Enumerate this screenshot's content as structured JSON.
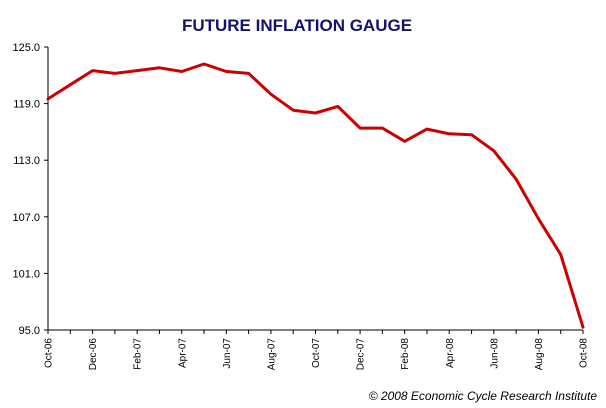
{
  "chart_data": {
    "type": "line",
    "title": "FUTURE INFLATION GAUGE",
    "xlabel": "",
    "ylabel": "",
    "ylim": [
      95.0,
      125.0
    ],
    "yticks": [
      "125.0",
      "119.0",
      "113.0",
      "107.0",
      "101.0",
      "95.0"
    ],
    "ytick_values": [
      125,
      119,
      113,
      107,
      101,
      95
    ],
    "xtick_labels": [
      "Oct-06",
      "Dec-06",
      "Feb-07",
      "Apr-07",
      "Jun-07",
      "Aug-07",
      "Oct-07",
      "Dec-07",
      "Feb-08",
      "Apr-08",
      "Jun-08",
      "Aug-08",
      "Oct-08"
    ],
    "grid": false,
    "legend": "none",
    "x": [
      "Oct-06",
      "Nov-06",
      "Dec-06",
      "Jan-07",
      "Feb-07",
      "Mar-07",
      "Apr-07",
      "May-07",
      "Jun-07",
      "Jul-07",
      "Aug-07",
      "Sep-07",
      "Oct-07",
      "Nov-07",
      "Dec-07",
      "Jan-08",
      "Feb-08",
      "Mar-08",
      "Apr-08",
      "May-08",
      "Jun-08",
      "Jul-08",
      "Aug-08",
      "Sep-08",
      "Oct-08"
    ],
    "series": [
      {
        "values": [
          119.5,
          121.0,
          122.5,
          122.2,
          122.5,
          122.8,
          122.4,
          123.2,
          122.4,
          122.2,
          120.0,
          118.3,
          118.0,
          118.7,
          116.4,
          116.4,
          115.0,
          116.3,
          115.8,
          115.7,
          114.0,
          111.0,
          106.8,
          103.0,
          95.3
        ]
      }
    ],
    "line_color": "#cc0000"
  },
  "footer": {
    "credit": "© 2008 Economic Cycle Research Institute"
  }
}
